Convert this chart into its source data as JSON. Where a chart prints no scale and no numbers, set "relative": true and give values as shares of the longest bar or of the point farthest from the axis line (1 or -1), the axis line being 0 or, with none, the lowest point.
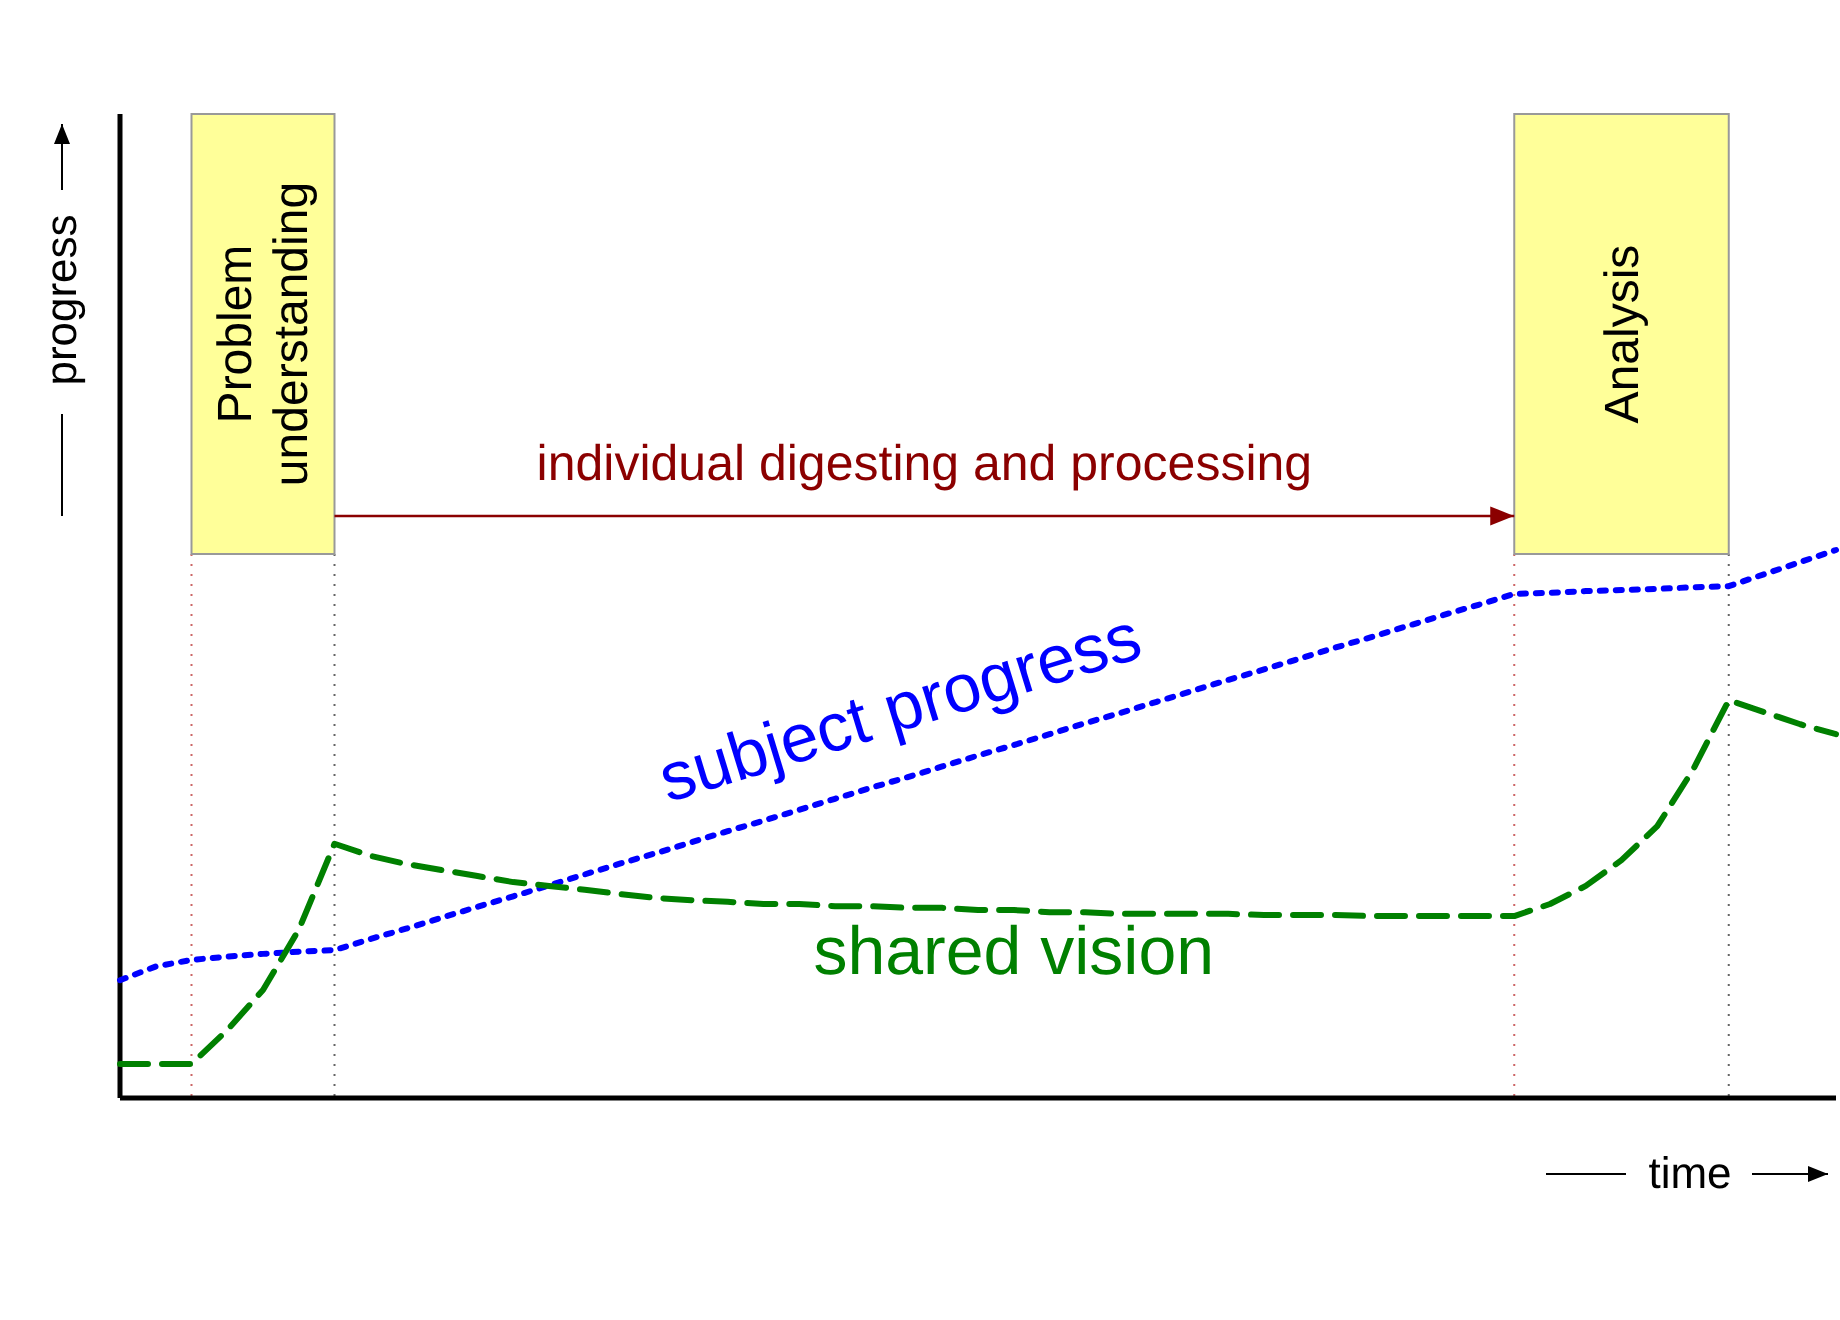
{
  "chart_data": {
    "type": "line",
    "relative": true,
    "grid": "x",
    "xlabel": "time",
    "ylabel": "progress",
    "categories": [
      null,
      null,
      null,
      null,
      null,
      null,
      null,
      null,
      null,
      null,
      null,
      null,
      null,
      null,
      null,
      null,
      null,
      null,
      null,
      null,
      null,
      null,
      null,
      null,
      null,
      null,
      null,
      null,
      null,
      null,
      null,
      null,
      null,
      null,
      null,
      null,
      null,
      null,
      null,
      null,
      null,
      null,
      null,
      null,
      null,
      null,
      null,
      null,
      null
    ],
    "annotations": [
      "Problem understanding",
      "Analysis",
      "individual digesting and processing"
    ],
    "series": [
      {
        "name": "subject progress",
        "color": "#0000ff",
        "line_style": "dotted",
        "values": [
          0.215,
          0.24,
          0.252,
          0.258,
          0.263,
          0.267,
          0.27,
          0.29,
          0.309,
          0.329,
          0.349,
          0.368,
          0.388,
          0.408,
          0.428,
          0.447,
          0.467,
          0.487,
          0.506,
          0.526,
          0.546,
          0.566,
          0.585,
          0.605,
          0.625,
          0.644,
          0.664,
          0.684,
          0.703,
          0.723,
          0.743,
          0.763,
          0.782,
          0.802,
          0.822,
          0.841,
          0.861,
          0.881,
          0.9,
          0.92,
          0.922,
          0.925,
          0.927,
          0.929,
          0.932,
          0.934,
          0.956,
          0.978,
          1
        ]
      },
      {
        "name": "shared vision",
        "color": "#008000",
        "line_style": "dashed",
        "values": [
          0.062,
          0.062,
          0.062,
          0.124,
          0.197,
          0.307,
          0.464,
          0.442,
          0.427,
          0.416,
          0.405,
          0.394,
          0.387,
          0.38,
          0.372,
          0.365,
          0.361,
          0.358,
          0.354,
          0.354,
          0.35,
          0.35,
          0.347,
          0.347,
          0.343,
          0.343,
          0.339,
          0.339,
          0.336,
          0.336,
          0.336,
          0.336,
          0.334,
          0.334,
          0.334,
          0.332,
          0.332,
          0.332,
          0.332,
          0.332,
          0.354,
          0.387,
          0.434,
          0.496,
          0.599,
          0.726,
          0.704,
          0.682,
          0.664
        ]
      }
    ]
  }
}
